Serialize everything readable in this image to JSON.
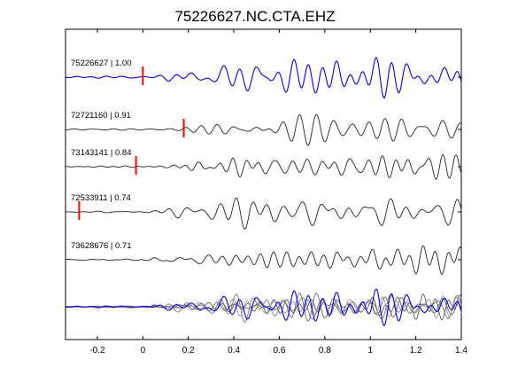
{
  "chart_data": {
    "type": "line",
    "title": "75226627.NC.CTA.EHZ",
    "xlabel": "",
    "ylabel": "",
    "xlim": [
      -0.34,
      1.4
    ],
    "x_ticks": [
      -0.2,
      0,
      0.2,
      0.4,
      0.6,
      0.8,
      1,
      1.2,
      1.4
    ],
    "x_tick_labels": [
      "-0.2",
      "0",
      "0.2",
      "0.4",
      "0.6",
      "0.8",
      "1",
      "1.2",
      "1.4"
    ],
    "grid": false,
    "traces": [
      {
        "label": "75226627 | 1.00",
        "color": "#0000ff",
        "pick_time": 0.0,
        "amplitude": 1.0,
        "onset": 0.05,
        "seed": 1
      },
      {
        "label": "72721160 | 0.91",
        "color": "#222222",
        "pick_time": 0.18,
        "amplitude": 0.85,
        "onset": 0.14,
        "seed": 2
      },
      {
        "label": "73143141 | 0.84",
        "color": "#222222",
        "pick_time": -0.03,
        "amplitude": 0.7,
        "onset": 0.12,
        "seed": 3
      },
      {
        "label": "72533911 | 0.74",
        "color": "#222222",
        "pick_time": -0.28,
        "amplitude": 0.85,
        "onset": 0.02,
        "seed": 4
      },
      {
        "label": "73628676 | 0.71",
        "color": "#222222",
        "pick_time": null,
        "amplitude": 0.75,
        "onset": 0.0,
        "seed": 5
      }
    ],
    "stack": {
      "label": "",
      "colors": [
        "#555555",
        "#777777",
        "#999999",
        "#666666",
        "#0000ff"
      ]
    },
    "pick_color": "#ff0000"
  }
}
